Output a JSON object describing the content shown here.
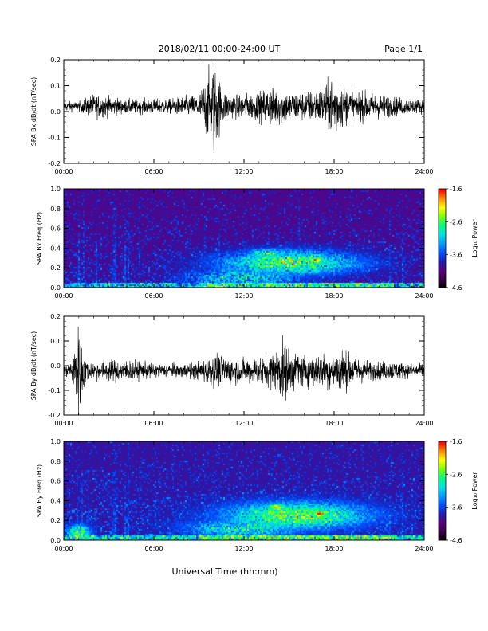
{
  "header": {
    "date_range": "2018/02/11  00:00-24:00 UT",
    "page": "Page 1/1"
  },
  "footer": {
    "xlabel": "Universal Time (hh:mm)"
  },
  "time_ticks": [
    "00:00",
    "06:00",
    "12:00",
    "18:00",
    "24:00"
  ],
  "colors": {
    "colormap": [
      "#000000",
      "#3c0046",
      "#5a0080",
      "#1e1eb4",
      "#0050ff",
      "#00a0ff",
      "#00e6e6",
      "#00ff80",
      "#7dff00",
      "#ffff00",
      "#ff8c00",
      "#ff0000"
    ]
  },
  "chart_data": [
    {
      "type": "line",
      "ylabel": "SPA Bx dB/dt (nT/sec)",
      "xlim": [
        0,
        24
      ],
      "ylim": [
        -0.2,
        0.2
      ],
      "yticks": [
        "0.2",
        "0.1",
        "0.0",
        "-0.1",
        "-0.2"
      ],
      "x": [
        0,
        1,
        2,
        3,
        4,
        5,
        6,
        7,
        8,
        9,
        9.5,
        10,
        10.5,
        11,
        12,
        13,
        14,
        15,
        16,
        17,
        17.5,
        18,
        18.5,
        19,
        20,
        21,
        22,
        23,
        24
      ],
      "baseline": [
        0.02,
        0.02,
        0.02,
        0.02,
        0.02,
        0.02,
        0.02,
        0.02,
        0.02,
        0.02,
        0.02,
        0.02,
        0.02,
        0.02,
        0.02,
        0.02,
        0.02,
        0.02,
        0.02,
        0.02,
        0.02,
        0.02,
        0.02,
        0.02,
        0.02,
        0.02,
        0.02,
        0.02,
        0.02
      ],
      "amplitude": [
        0.02,
        0.02,
        0.05,
        0.04,
        0.03,
        0.03,
        0.03,
        0.03,
        0.04,
        0.05,
        0.12,
        0.2,
        0.08,
        0.05,
        0.05,
        0.06,
        0.09,
        0.06,
        0.06,
        0.07,
        0.09,
        0.14,
        0.09,
        0.07,
        0.06,
        0.05,
        0.04,
        0.03,
        0.03
      ]
    },
    {
      "type": "heatmap",
      "ylabel": "SPA Bx Freq (Hz)",
      "xlim": [
        0,
        24
      ],
      "ylim": [
        0,
        1
      ],
      "yticks": [
        "1.0",
        "0.8",
        "0.6",
        "0.4",
        "0.2",
        "0.0"
      ],
      "colorbar": {
        "label": "Log₁₀ Power",
        "ticks": [
          "-1.6",
          "-2.6",
          "-3.6",
          "-4.6"
        ],
        "range": [
          -4.6,
          -1.6
        ]
      },
      "background_level": -4.0,
      "activity": [
        {
          "t": 15,
          "f": 0.25,
          "width_t": 5,
          "width_f": 0.13,
          "level": -2.6
        },
        {
          "t": 16.8,
          "f": 0.28,
          "width_t": 0.5,
          "width_f": 0.03,
          "level": -1.8
        },
        {
          "t": 13.5,
          "f": 0.35,
          "width_t": 1.3,
          "width_f": 0.05,
          "level": -2.8
        },
        {
          "t": 12,
          "f": 0.1,
          "width_t": 4,
          "width_f": 0.1,
          "level": -3.0
        }
      ],
      "streaks": [
        1,
        1.3,
        2.2,
        3.4,
        4.1,
        4.3,
        5.0,
        9.4,
        10.4,
        15.7,
        21.7,
        22.6
      ],
      "low_freq_band_level": -3.2
    },
    {
      "type": "line",
      "ylabel": "SPA By dB/dt (nT/sec)",
      "xlim": [
        0,
        24
      ],
      "ylim": [
        -0.2,
        0.2
      ],
      "yticks": [
        "0.2",
        "0.1",
        "0.0",
        "-0.1",
        "-0.2"
      ],
      "x": [
        0,
        0.5,
        1,
        1.5,
        2,
        3,
        4,
        5,
        6,
        7,
        8,
        9,
        10,
        11,
        12,
        13,
        14,
        14.5,
        15,
        15.5,
        16,
        17,
        18,
        18.5,
        19,
        20,
        21,
        22,
        23,
        24
      ],
      "baseline": [
        -0.02,
        -0.02,
        -0.02,
        -0.02,
        -0.02,
        -0.02,
        -0.02,
        -0.02,
        -0.02,
        -0.02,
        -0.02,
        -0.02,
        -0.02,
        -0.02,
        -0.02,
        -0.02,
        -0.02,
        -0.02,
        -0.02,
        -0.02,
        -0.02,
        -0.02,
        -0.02,
        -0.02,
        -0.02,
        -0.02,
        -0.02,
        -0.02,
        -0.02,
        -0.02
      ],
      "amplitude": [
        0.02,
        0.04,
        0.2,
        0.05,
        0.04,
        0.05,
        0.05,
        0.04,
        0.03,
        0.03,
        0.03,
        0.04,
        0.07,
        0.06,
        0.05,
        0.06,
        0.08,
        0.14,
        0.1,
        0.08,
        0.07,
        0.07,
        0.08,
        0.1,
        0.07,
        0.05,
        0.04,
        0.04,
        0.03,
        0.03
      ]
    },
    {
      "type": "heatmap",
      "ylabel": "SPA By Freq (Hz)",
      "xlim": [
        0,
        24
      ],
      "ylim": [
        0,
        1
      ],
      "yticks": [
        "1.0",
        "0.8",
        "0.6",
        "0.4",
        "0.2",
        "0.0"
      ],
      "colorbar": {
        "label": "Log₁₀ Power",
        "ticks": [
          "-1.6",
          "-2.6",
          "-3.6",
          "-4.6"
        ],
        "range": [
          -4.6,
          -1.6
        ]
      },
      "background_level": -3.9,
      "activity": [
        {
          "t": 15.5,
          "f": 0.25,
          "width_t": 5,
          "width_f": 0.14,
          "level": -2.5
        },
        {
          "t": 17.1,
          "f": 0.27,
          "width_t": 0.6,
          "width_f": 0.03,
          "level": -1.8
        },
        {
          "t": 14.2,
          "f": 0.33,
          "width_t": 0.8,
          "width_f": 0.04,
          "level": -2.3
        },
        {
          "t": 12,
          "f": 0.12,
          "width_t": 4,
          "width_f": 0.1,
          "level": -2.9
        },
        {
          "t": 1,
          "f": 0.08,
          "width_t": 0.8,
          "width_f": 0.08,
          "level": -2.6
        }
      ],
      "streaks": [
        0.9,
        1.2,
        1.6,
        3.4,
        4.1,
        4.3,
        9.4,
        10.4,
        15.6,
        21.7,
        22.6
      ],
      "low_freq_band_level": -3.0
    }
  ]
}
